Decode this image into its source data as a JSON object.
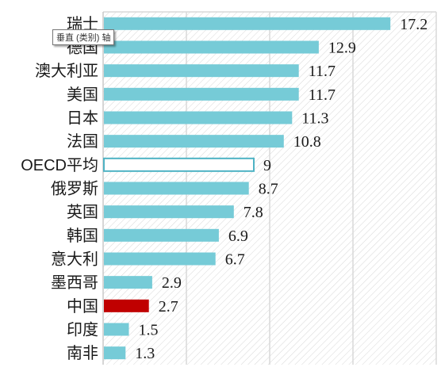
{
  "tooltip": {
    "text": "垂直 (类别) 轴"
  },
  "chart_data": {
    "type": "bar",
    "orientation": "horizontal",
    "categories": [
      "瑞士",
      "德国",
      "澳大利亚",
      "美国",
      "日本",
      "法国",
      "OECD平均",
      "俄罗斯",
      "英国",
      "韩国",
      "意大利",
      "墨西哥",
      "中国",
      "印度",
      "南非"
    ],
    "values": [
      17.2,
      12.9,
      11.7,
      11.7,
      11.3,
      10.8,
      9,
      8.7,
      7.8,
      6.9,
      6.7,
      2.9,
      2.7,
      1.5,
      1.3
    ],
    "value_labels": [
      "17.2",
      "12.9",
      "11.7",
      "11.7",
      "11.3",
      "10.8",
      "9",
      "8.7",
      "7.8",
      "6.9",
      "6.7",
      "2.9",
      "2.7",
      "1.5",
      "1.3"
    ],
    "xlim": [
      0,
      20
    ],
    "grid": true,
    "legend": "none",
    "colors": {
      "bar": "#76cbd7",
      "outline_bar": "#ffffff",
      "outline_stroke": "#4eb3c4",
      "highlight": "#c00000",
      "grid": "#d9d9d9"
    },
    "highlight_category": "中国",
    "outline_category": "OECD平均"
  }
}
